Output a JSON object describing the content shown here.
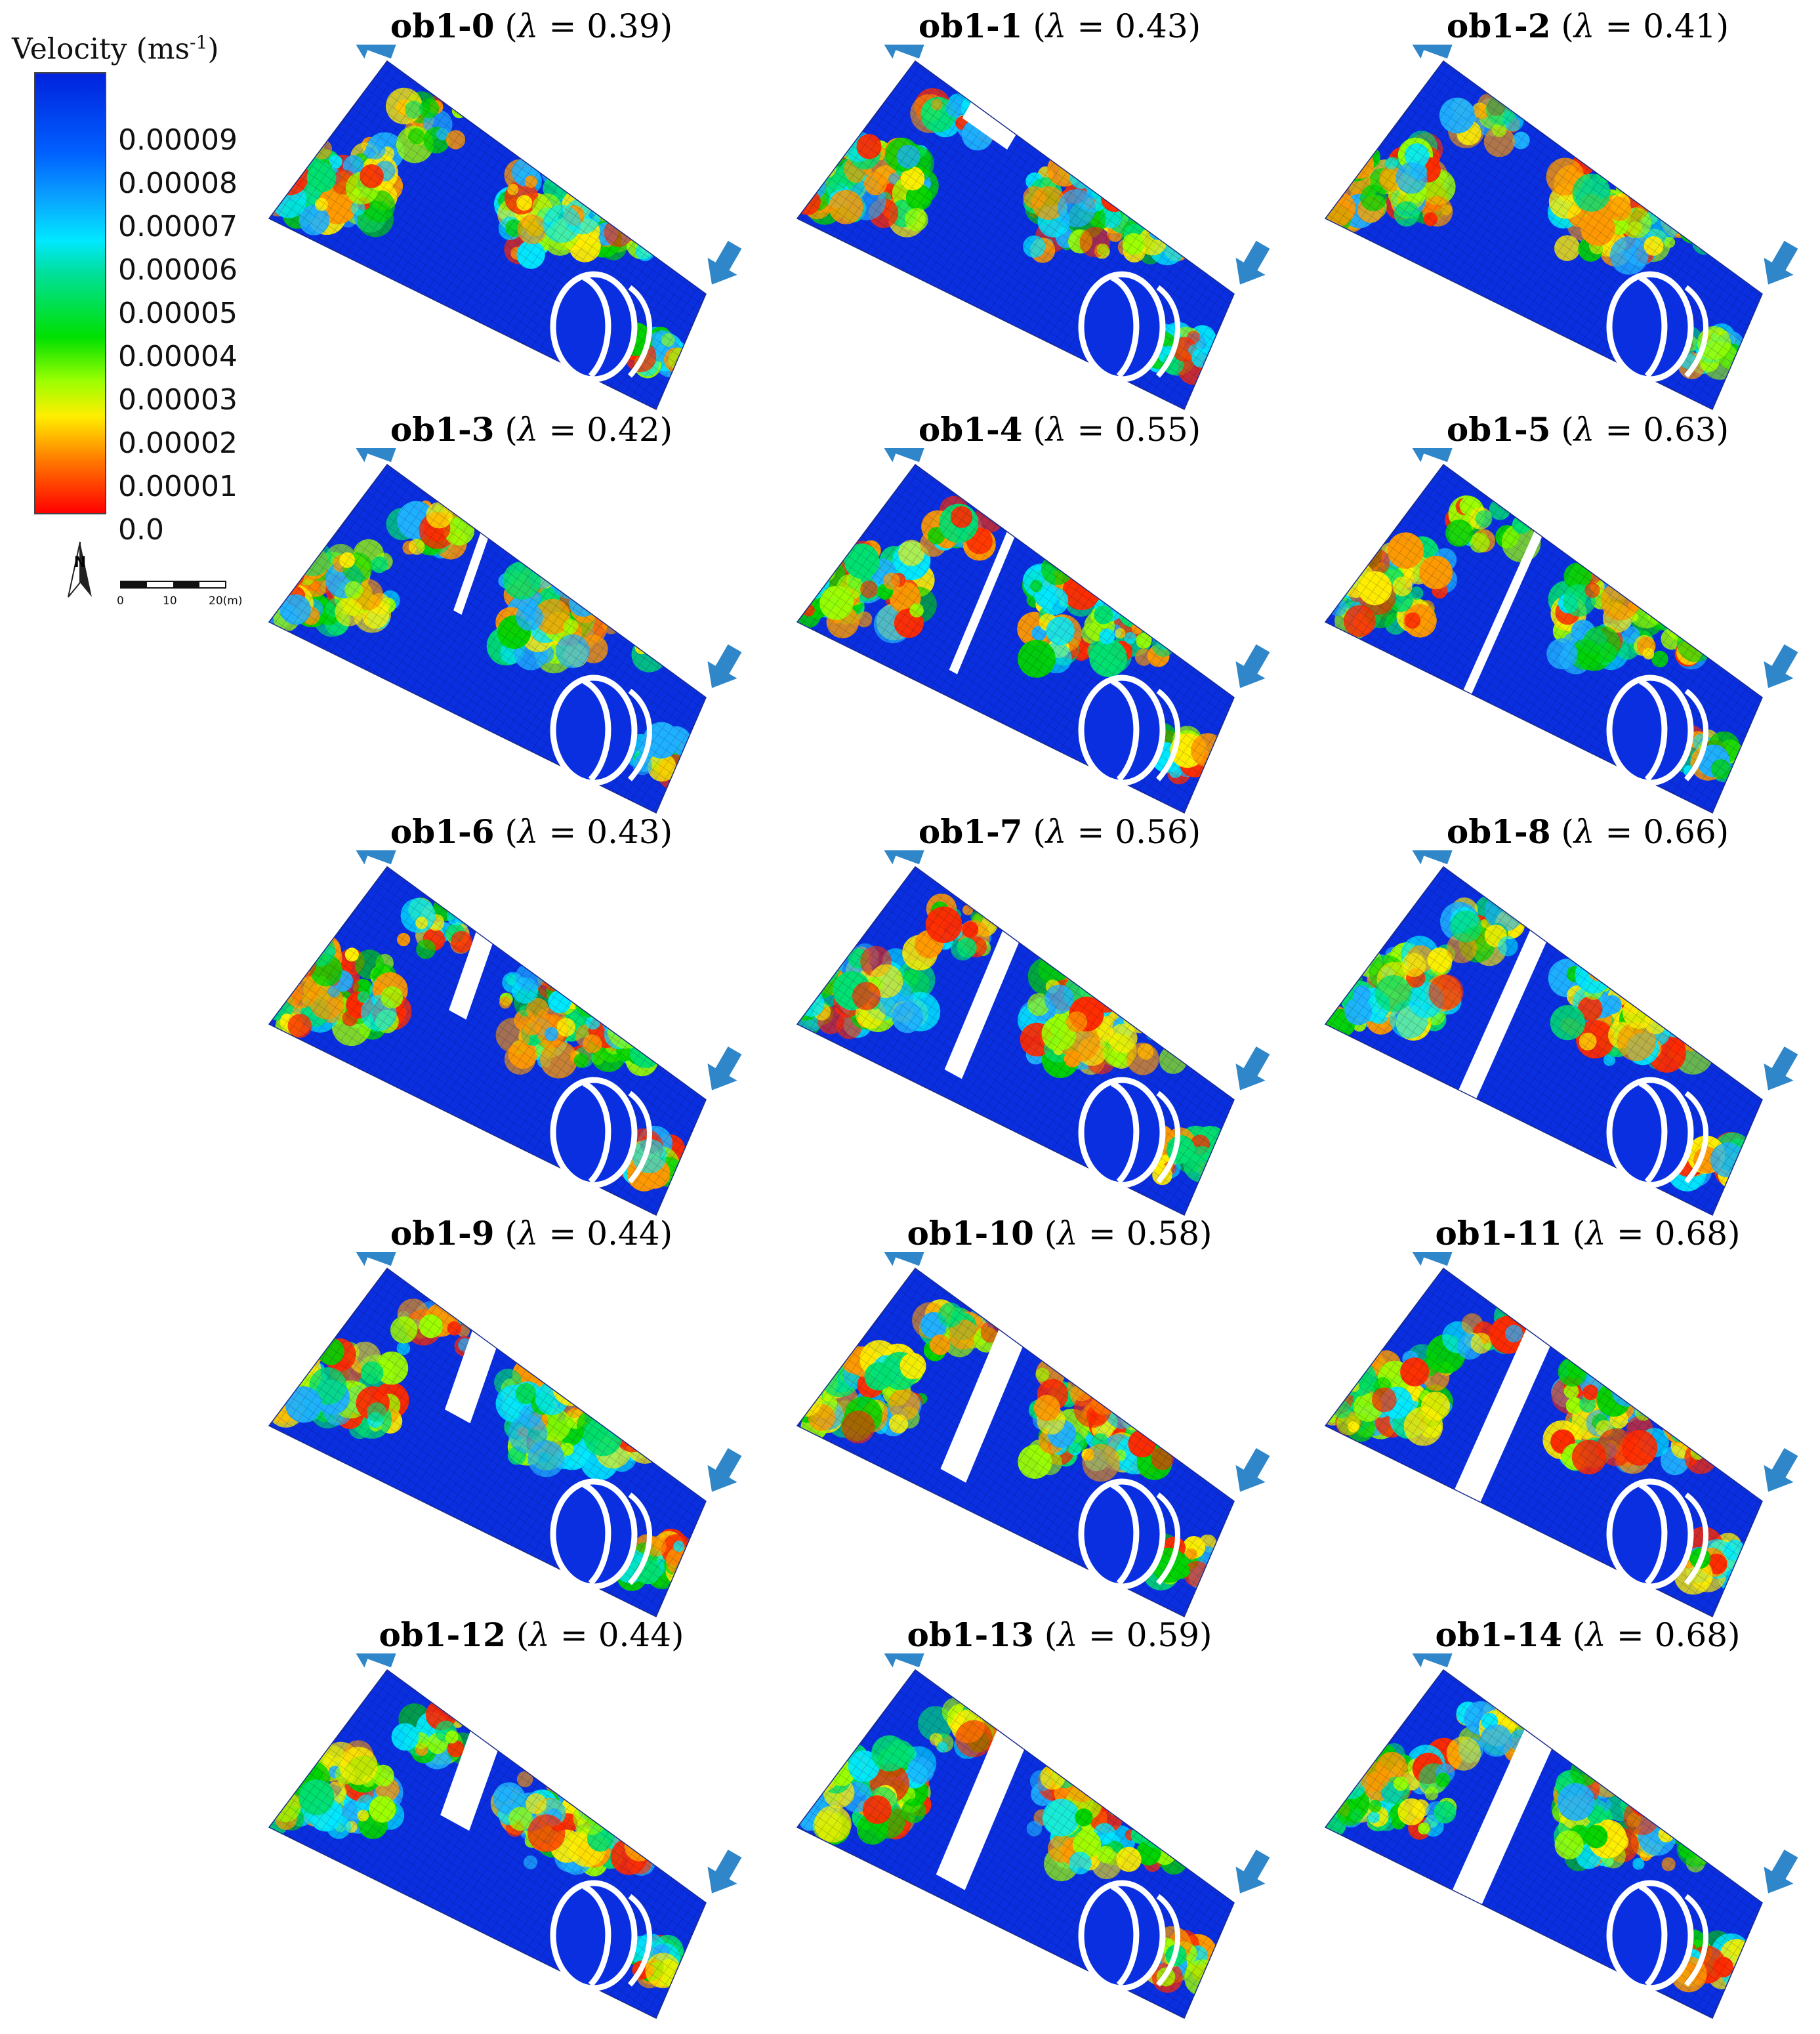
{
  "legend": {
    "title": "Velocity (ms",
    "title_sup": "-1",
    "title_close": ")",
    "ticks": [
      "0.00009",
      "0.00008",
      "0.00007",
      "0.00006",
      "0.00005",
      "0.00004",
      "0.00003",
      "0.00002",
      "0.00001",
      "0.0"
    ],
    "colors": [
      "#0022dd",
      "#0a7aff",
      "#00e8ff",
      "#00e070",
      "#00d400",
      "#9cff00",
      "#ffee00",
      "#ff9900",
      "#ff2a00"
    ]
  },
  "north_label": "N",
  "scale": {
    "labels": [
      "0",
      "10",
      "20(m)"
    ]
  },
  "arrow_color": "#2f86c8",
  "panels": [
    {
      "name": "ob1-0",
      "lambda": "0.39",
      "cut": "none"
    },
    {
      "name": "ob1-1",
      "lambda": "0.43",
      "cut": "notch-top"
    },
    {
      "name": "ob1-2",
      "lambda": "0.41",
      "cut": "none"
    },
    {
      "name": "ob1-3",
      "lambda": "0.42",
      "cut": "thin-short"
    },
    {
      "name": "ob1-4",
      "lambda": "0.55",
      "cut": "thin-medium"
    },
    {
      "name": "ob1-5",
      "lambda": "0.63",
      "cut": "thin-long"
    },
    {
      "name": "ob1-6",
      "lambda": "0.43",
      "cut": "wide-short"
    },
    {
      "name": "ob1-7",
      "lambda": "0.56",
      "cut": "wide-medium"
    },
    {
      "name": "ob1-8",
      "lambda": "0.66",
      "cut": "wide-long"
    },
    {
      "name": "ob1-9",
      "lambda": "0.44",
      "cut": "xwide-short"
    },
    {
      "name": "ob1-10",
      "lambda": "0.58",
      "cut": "xwide-medium"
    },
    {
      "name": "ob1-11",
      "lambda": "0.68",
      "cut": "xwide-long"
    },
    {
      "name": "ob1-12",
      "lambda": "0.44",
      "cut": "xxwide-short"
    },
    {
      "name": "ob1-13",
      "lambda": "0.59",
      "cut": "xxwide-medium"
    },
    {
      "name": "ob1-14",
      "lambda": "0.68",
      "cut": "xxwide-long"
    }
  ]
}
